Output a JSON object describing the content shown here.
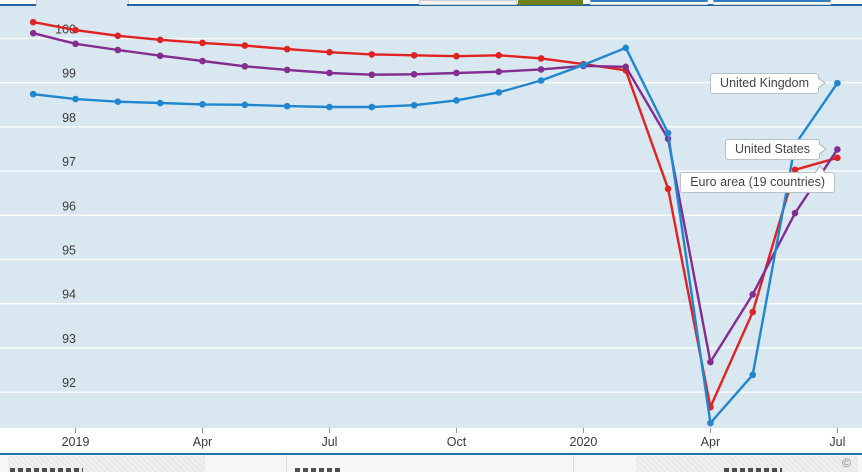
{
  "topbar": {
    "accent_color": "#2166a0",
    "olive_button_color": "#6f801b"
  },
  "chart_data": {
    "type": "line",
    "title": "",
    "xlabel": "",
    "ylabel": "",
    "plot_background": "#d9e7f0",
    "gridline_color": "#ffffff",
    "yticks": [
      92,
      93,
      94,
      95,
      96,
      97,
      98,
      99,
      100
    ],
    "ylim": [
      91.0,
      100.5
    ],
    "grid": "horizontal-only",
    "legend_position": "end-of-line-callouts",
    "months": [
      "Dec 2018",
      "Jan 2019",
      "Feb 2019",
      "Mar 2019",
      "Apr 2019",
      "May 2019",
      "Jun 2019",
      "Jul 2019",
      "Aug 2019",
      "Sep 2019",
      "Oct 2019",
      "Nov 2019",
      "Dec 2019",
      "Jan 2020",
      "Feb 2020",
      "Mar 2020",
      "Apr 2020",
      "May 2020",
      "Jun 2020",
      "Jul 2020"
    ],
    "x_axis": {
      "ticks": [
        {
          "label": "2019",
          "month_index": 1
        },
        {
          "label": "Apr",
          "month_index": 4
        },
        {
          "label": "Jul",
          "month_index": 7
        },
        {
          "label": "Oct",
          "month_index": 10
        },
        {
          "label": "2020",
          "month_index": 13
        },
        {
          "label": "Apr",
          "month_index": 16
        },
        {
          "label": "Jul",
          "month_index": 19
        }
      ]
    },
    "series": [
      {
        "name": "Euro area (19 countries)",
        "color": "#e02222",
        "values": [
          100.37,
          100.19,
          100.06,
          99.97,
          99.9,
          99.84,
          99.76,
          99.69,
          99.64,
          99.62,
          99.6,
          99.62,
          99.55,
          99.42,
          99.28,
          96.6,
          91.66,
          93.81,
          97.03,
          97.3
        ]
      },
      {
        "name": "United States",
        "color": "#822d8f",
        "values": [
          100.12,
          99.88,
          99.74,
          99.61,
          99.49,
          99.37,
          99.29,
          99.22,
          99.18,
          99.19,
          99.22,
          99.25,
          99.3,
          99.38,
          99.36,
          97.73,
          92.68,
          94.21,
          96.05,
          97.49
        ]
      },
      {
        "name": "United Kingdom",
        "color": "#1f86cf",
        "values": [
          98.74,
          98.63,
          98.57,
          98.54,
          98.51,
          98.5,
          98.47,
          98.45,
          98.45,
          98.49,
          98.6,
          98.78,
          99.05,
          99.4,
          99.79,
          97.86,
          91.3,
          92.39,
          97.6,
          98.99
        ]
      }
    ],
    "annotations": [
      {
        "text": "United Kingdom",
        "series": "United Kingdom"
      },
      {
        "text": "United States",
        "series": "United States"
      },
      {
        "text": "Euro area (19 countries)",
        "series": "Euro area (19 countries)"
      }
    ]
  },
  "footer": {
    "copyright_symbol": "©"
  }
}
